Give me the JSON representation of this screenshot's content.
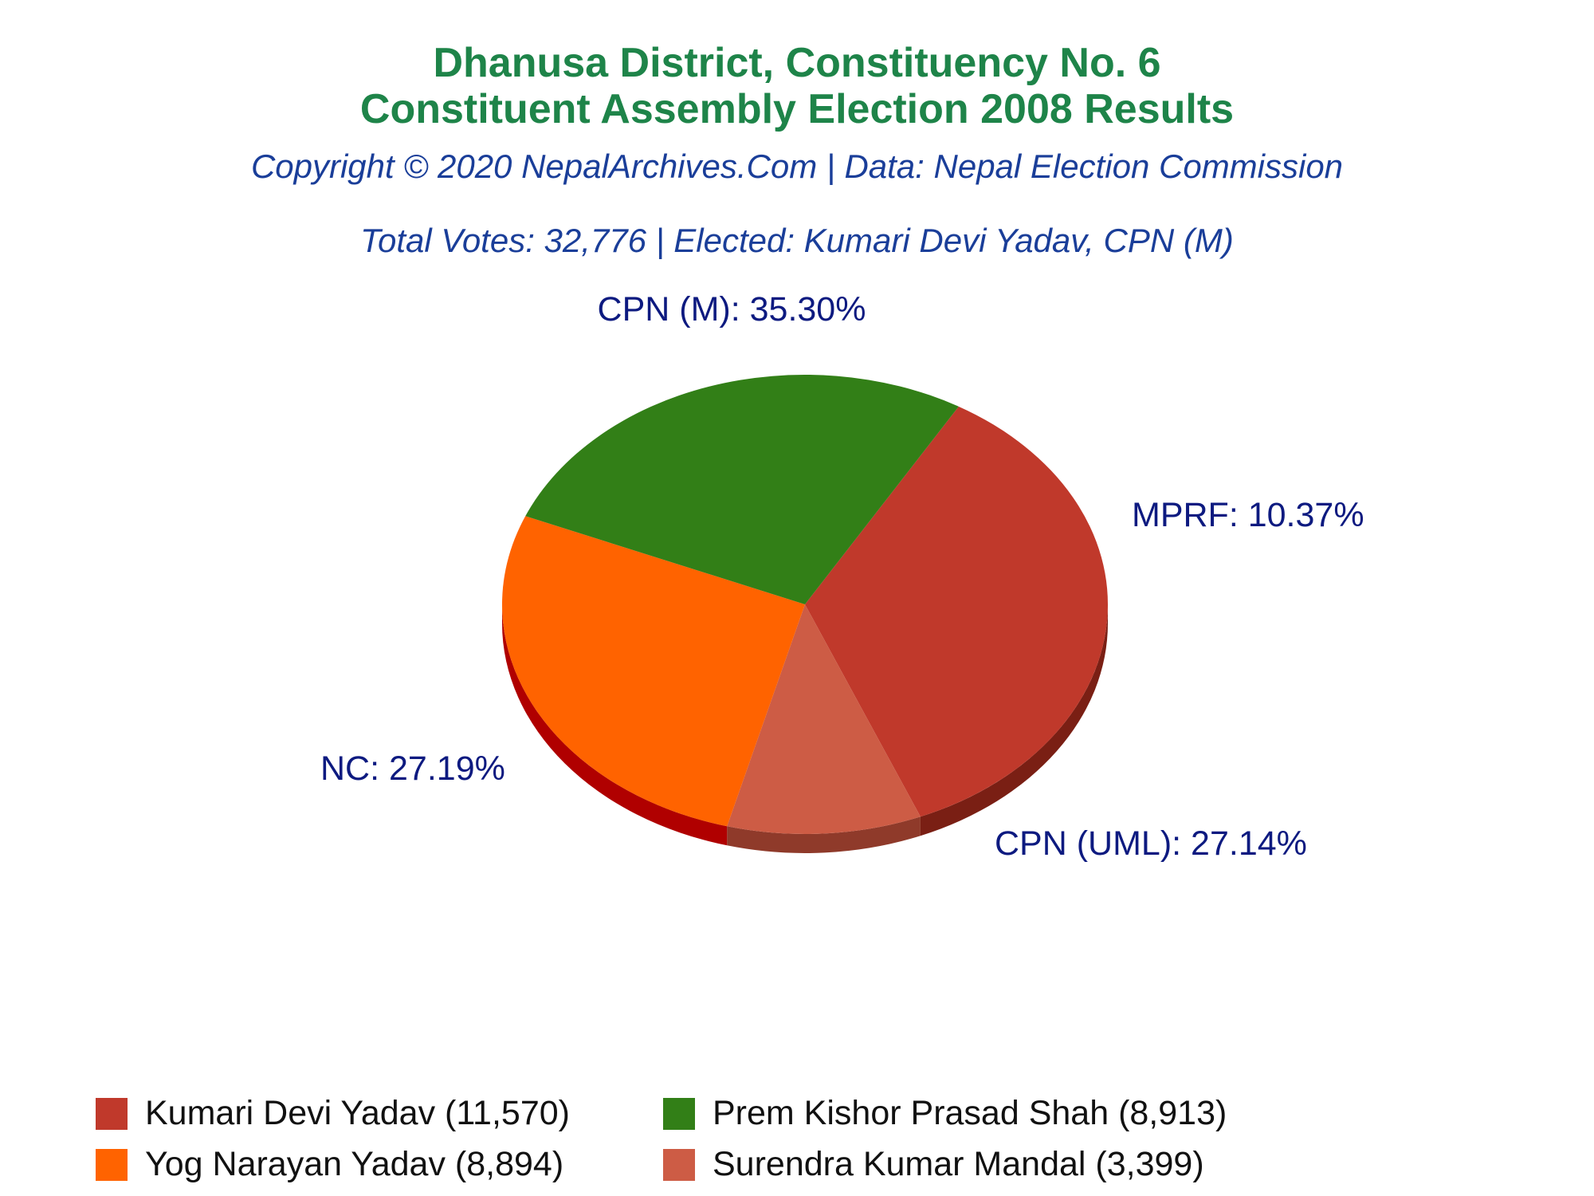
{
  "header": {
    "title_line1": "Dhanusa District, Constituency No. 6",
    "title_line2": "Constituent Assembly Election 2008 Results",
    "copyright": "Copyright © 2020 NepalArchives.Com | Data: Nepal Election Commission",
    "summary": "Total Votes: 32,776 | Elected: Kumari Devi Yadav, CPN (M)"
  },
  "chart_data": {
    "type": "pie",
    "title": "Dhanusa District, Constituency No. 6 Constituent Assembly Election 2008 Results",
    "total_votes": 32776,
    "slices": [
      {
        "label": "CPN (M): 35.30%",
        "party": "CPN (M)",
        "percent": 35.3,
        "candidate": "Kumari Devi Yadav",
        "votes": 11570,
        "legend": "Kumari Devi Yadav (11,570)",
        "color": "#c0392b",
        "side_color": "#7a1f14"
      },
      {
        "label": "MPRF: 10.37%",
        "party": "MPRF",
        "percent": 10.37,
        "candidate": "Surendra Kumar Mandal",
        "votes": 3399,
        "legend": "Surendra Kumar Mandal (3,399)",
        "color": "#cd5c45",
        "side_color": "#8f3a2a"
      },
      {
        "label": "CPN (UML): 27.14%",
        "party": "CPN (UML)",
        "percent": 27.14,
        "candidate": "Yog Narayan Yadav",
        "votes": 8894,
        "legend": "Yog Narayan Yadav (8,894)",
        "color": "#ff6300",
        "side_color": "#b00000"
      },
      {
        "label": "NC: 27.19%",
        "party": "NC",
        "percent": 27.19,
        "candidate": "Prem Kishor Prasad Shah",
        "votes": 8913,
        "legend": "Prem Kishor Prasad Shah (8,913)",
        "color": "#327f17",
        "side_color": "#0f2a06"
      }
    ],
    "legend_order": [
      "Kumari Devi Yadav",
      "Prem Kishor Prasad Shah",
      "Yog Narayan Yadav",
      "Surendra Kumar Mandal"
    ],
    "legend_placement": "bottom"
  },
  "colors": {
    "title": "#1e8449",
    "subtitle": "#1a3e99",
    "slice_label": "#0d1a80"
  }
}
